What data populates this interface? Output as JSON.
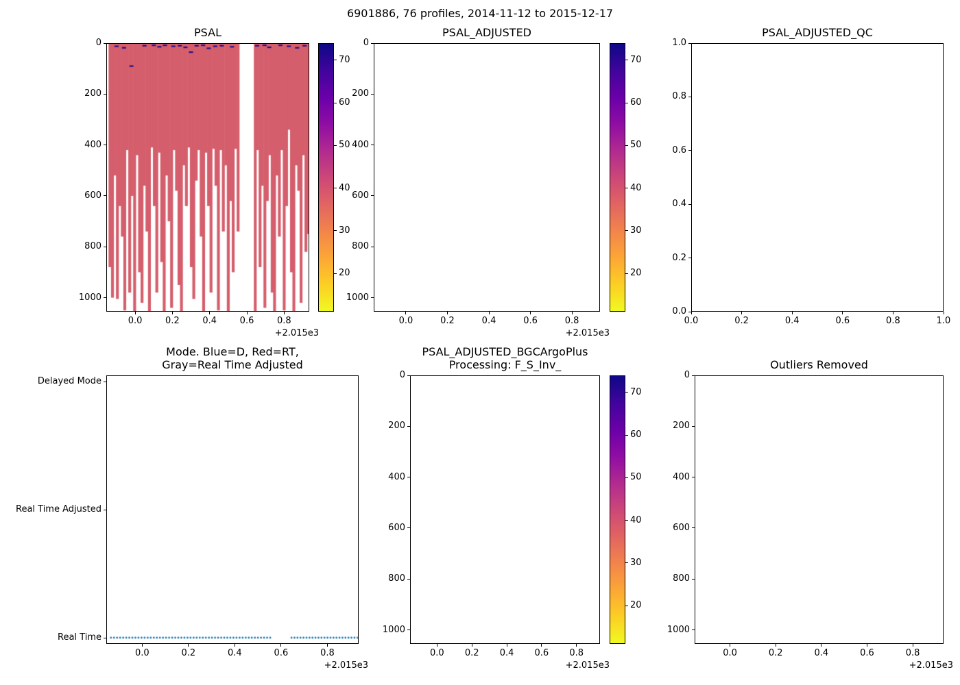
{
  "figure": {
    "suptitle": "6901886, 76 profiles, 2014-11-12 to 2015-12-17"
  },
  "colors": {
    "profile_fill": "#d55e6c",
    "surface_mark": "#1e0f8e",
    "mode_dot": "#1f77b4",
    "axes_edge": "#000000"
  },
  "colormap_stops": [
    "#0d0887",
    "#41049d",
    "#6a00a8",
    "#8f0da4",
    "#b12a90",
    "#cc4778",
    "#e16462",
    "#f2844b",
    "#fca636",
    "#fcce25",
    "#f0f921"
  ],
  "chart_data": [
    {
      "id": "psal",
      "type": "heatmap",
      "title": "PSAL",
      "x_range": [
        -0.155,
        0.935
      ],
      "x_tick_values": [
        0.0,
        0.2,
        0.4,
        0.6,
        0.8
      ],
      "x_tick_labels": [
        "0.0",
        "0.2",
        "0.4",
        "0.6",
        "0.8"
      ],
      "x_offset": "+2.015e3",
      "y_range": [
        0,
        1055
      ],
      "y_down": true,
      "y_tick_values": [
        0,
        200,
        400,
        600,
        800,
        1000
      ],
      "y_tick_labels": [
        "0",
        "200",
        "400",
        "600",
        "800",
        "1000"
      ],
      "fill_value_typical": 40,
      "profile_segments": [
        {
          "x_start": -0.135,
          "x_end": 0.553,
          "depths": [
            880,
            1000,
            520,
            1005,
            640,
            760,
            1050,
            420,
            980,
            600,
            1060,
            440,
            900,
            1020,
            560,
            740,
            1055,
            410,
            640,
            980,
            430,
            860,
            1060,
            520,
            700,
            1040,
            420,
            580,
            950,
            1060,
            480,
            640,
            410,
            880,
            1005,
            540,
            420,
            760,
            1060,
            430,
            640,
            980,
            415,
            560,
            1050,
            420,
            740,
            480,
            1060,
            620,
            900,
            415,
            740
          ]
        },
        {
          "x_start": 0.645,
          "x_end": 0.93,
          "depths": [
            1060,
            420,
            880,
            560,
            1040,
            620,
            440,
            980,
            1060,
            520,
            760,
            420,
            1050,
            640,
            340,
            900,
            1060,
            480,
            580,
            1020,
            440,
            820,
            750
          ]
        }
      ],
      "surface_marks": [
        [
          -0.1,
          12
        ],
        [
          -0.06,
          18
        ],
        [
          -0.02,
          90
        ],
        [
          0.05,
          10
        ],
        [
          0.1,
          8
        ],
        [
          0.13,
          14
        ],
        [
          0.16,
          8
        ],
        [
          0.205,
          12
        ],
        [
          0.24,
          10
        ],
        [
          0.27,
          16
        ],
        [
          0.3,
          35
        ],
        [
          0.33,
          10
        ],
        [
          0.365,
          8
        ],
        [
          0.395,
          20
        ],
        [
          0.43,
          12
        ],
        [
          0.465,
          10
        ],
        [
          0.52,
          14
        ],
        [
          0.655,
          10
        ],
        [
          0.695,
          8
        ],
        [
          0.72,
          16
        ],
        [
          0.78,
          8
        ],
        [
          0.825,
          12
        ],
        [
          0.87,
          18
        ],
        [
          0.91,
          10
        ]
      ],
      "colorbar": {
        "vmin": 11,
        "vmax": 74,
        "ticks": [
          20,
          30,
          40,
          50,
          60,
          70
        ],
        "tick_labels": [
          "20",
          "30",
          "40",
          "50",
          "60",
          "70"
        ],
        "colormap": "plasma_r"
      }
    },
    {
      "id": "psal_adjusted",
      "type": "heatmap",
      "title": "PSAL_ADJUSTED",
      "x_range": [
        -0.155,
        0.935
      ],
      "x_tick_values": [
        0.0,
        0.2,
        0.4,
        0.6,
        0.8
      ],
      "x_tick_labels": [
        "0.0",
        "0.2",
        "0.4",
        "0.6",
        "0.8"
      ],
      "x_offset": "+2.015e3",
      "y_range": [
        0,
        1055
      ],
      "y_down": true,
      "y_tick_values": [
        0,
        200,
        400,
        600,
        800,
        1000
      ],
      "y_tick_labels": [
        "0",
        "200",
        "400",
        "600",
        "800",
        "1000"
      ],
      "profile_segments": [],
      "colorbar": {
        "vmin": 11,
        "vmax": 74,
        "ticks": [
          20,
          30,
          40,
          50,
          60,
          70
        ],
        "tick_labels": [
          "20",
          "30",
          "40",
          "50",
          "60",
          "70"
        ],
        "colormap": "plasma_r"
      }
    },
    {
      "id": "psal_adjusted_qc",
      "type": "heatmap",
      "title": "PSAL_ADJUSTED_QC",
      "x_range": [
        0,
        1
      ],
      "x_tick_values": [
        0.0,
        0.2,
        0.4,
        0.6,
        0.8,
        1.0
      ],
      "x_tick_labels": [
        "0.0",
        "0.2",
        "0.4",
        "0.6",
        "0.8",
        "1.0"
      ],
      "y_range": [
        0,
        1
      ],
      "y_down": false,
      "y_tick_values": [
        0.0,
        0.2,
        0.4,
        0.6,
        0.8,
        1.0
      ],
      "y_tick_labels": [
        "0.0",
        "0.2",
        "0.4",
        "0.6",
        "0.8",
        "1.0"
      ]
    },
    {
      "id": "mode",
      "type": "scatter",
      "title_lines": [
        "Mode. Blue=D, Red=RT,",
        "Gray=Real Time Adjusted"
      ],
      "x_range": [
        -0.155,
        0.935
      ],
      "x_tick_values": [
        0.0,
        0.2,
        0.4,
        0.6,
        0.8
      ],
      "x_tick_labels": [
        "0.0",
        "0.2",
        "0.4",
        "0.6",
        "0.8"
      ],
      "x_offset": "+2.015e3",
      "y_categories": [
        "Delayed Mode",
        "Real Time Adjusted",
        "Real Time"
      ],
      "points_category": "Real Time",
      "dot_segments": [
        {
          "x_start": -0.135,
          "x_end": 0.553,
          "count": 53
        },
        {
          "x_start": 0.645,
          "x_end": 0.93,
          "count": 23
        }
      ]
    },
    {
      "id": "bgc",
      "type": "heatmap",
      "title_lines": [
        "PSAL_ADJUSTED_BGCArgoPlus",
        "Processing: F_S_Inv_"
      ],
      "x_range": [
        -0.155,
        0.935
      ],
      "x_tick_values": [
        0.0,
        0.2,
        0.4,
        0.6,
        0.8
      ],
      "x_tick_labels": [
        "0.0",
        "0.2",
        "0.4",
        "0.6",
        "0.8"
      ],
      "x_offset": "+2.015e3",
      "y_range": [
        0,
        1055
      ],
      "y_down": true,
      "y_tick_values": [
        0,
        200,
        400,
        600,
        800,
        1000
      ],
      "y_tick_labels": [
        "0",
        "200",
        "400",
        "600",
        "800",
        "1000"
      ],
      "profile_segments": [],
      "colorbar": {
        "vmin": 11,
        "vmax": 74,
        "ticks": [
          20,
          30,
          40,
          50,
          60,
          70
        ],
        "tick_labels": [
          "20",
          "30",
          "40",
          "50",
          "60",
          "70"
        ],
        "colormap": "plasma_r"
      }
    },
    {
      "id": "outliers",
      "type": "heatmap",
      "title": "Outliers Removed",
      "x_range": [
        -0.155,
        0.935
      ],
      "x_tick_values": [
        0.0,
        0.2,
        0.4,
        0.6,
        0.8
      ],
      "x_tick_labels": [
        "0.0",
        "0.2",
        "0.4",
        "0.6",
        "0.8"
      ],
      "x_offset": "+2.015e3",
      "y_range": [
        0,
        1055
      ],
      "y_down": true,
      "y_tick_values": [
        0,
        200,
        400,
        600,
        800,
        1000
      ],
      "y_tick_labels": [
        "0",
        "200",
        "400",
        "600",
        "800",
        "1000"
      ]
    }
  ]
}
